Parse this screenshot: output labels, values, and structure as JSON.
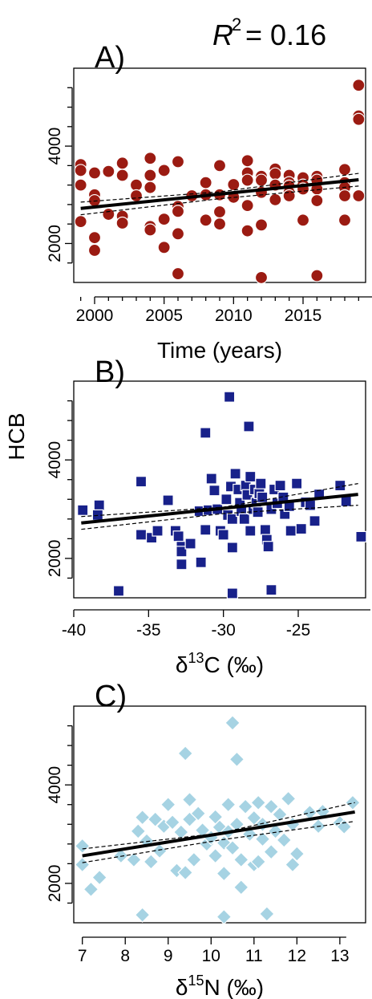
{
  "r2_text": "= 0.16",
  "shared_ylabel": "HCB",
  "chart_data": [
    {
      "type": "scatter",
      "panel": "A)",
      "xlabel": "Time (years)",
      "xlim": [
        1998.5,
        2019.5
      ],
      "ylim": [
        1200,
        5600
      ],
      "xticks": [
        2000,
        2005,
        2010,
        2015
      ],
      "yticks": [
        2000,
        4000
      ],
      "marker": "circle",
      "color": "#9b1b12",
      "points": [
        [
          1999,
          3620
        ],
        [
          1999,
          3500
        ],
        [
          1999,
          3200
        ],
        [
          1999,
          2450
        ],
        [
          2000,
          3450
        ],
        [
          2000,
          3000
        ],
        [
          2000,
          2880
        ],
        [
          2000,
          2120
        ],
        [
          2000,
          1860
        ],
        [
          2001,
          3480
        ],
        [
          2001,
          2600
        ],
        [
          2002,
          3650
        ],
        [
          2002,
          3400
        ],
        [
          2002,
          2560
        ],
        [
          2002,
          2420
        ],
        [
          2003,
          3200
        ],
        [
          2003,
          2980
        ],
        [
          2004,
          3750
        ],
        [
          2004,
          3400
        ],
        [
          2004,
          3150
        ],
        [
          2004,
          2350
        ],
        [
          2004,
          2280
        ],
        [
          2005,
          3500
        ],
        [
          2005,
          2500
        ],
        [
          2005,
          1920
        ],
        [
          2006,
          3680
        ],
        [
          2006,
          2760
        ],
        [
          2006,
          2660
        ],
        [
          2006,
          2200
        ],
        [
          2006,
          1380
        ],
        [
          2007,
          2980
        ],
        [
          2008,
          3250
        ],
        [
          2008,
          3000
        ],
        [
          2008,
          2480
        ],
        [
          2009,
          3600
        ],
        [
          2009,
          3000
        ],
        [
          2009,
          2650
        ],
        [
          2009,
          2400
        ],
        [
          2010,
          3210
        ],
        [
          2010,
          2950
        ],
        [
          2011,
          3700
        ],
        [
          2011,
          3450
        ],
        [
          2011,
          3300
        ],
        [
          2011,
          2780
        ],
        [
          2011,
          2260
        ],
        [
          2012,
          3380
        ],
        [
          2012,
          3300
        ],
        [
          2012,
          3050
        ],
        [
          2012,
          2380
        ],
        [
          2012,
          1300
        ],
        [
          2013,
          3530
        ],
        [
          2013,
          3430
        ],
        [
          2013,
          3200
        ],
        [
          2013,
          2900
        ],
        [
          2014,
          3400
        ],
        [
          2014,
          3250
        ],
        [
          2014,
          3180
        ],
        [
          2014,
          3050
        ],
        [
          2014,
          2980
        ],
        [
          2015,
          3350
        ],
        [
          2015,
          3200
        ],
        [
          2015,
          3120
        ],
        [
          2015,
          2480
        ],
        [
          2016,
          3380
        ],
        [
          2016,
          3300
        ],
        [
          2016,
          3120
        ],
        [
          2016,
          2880
        ],
        [
          2016,
          1340
        ],
        [
          2018,
          3520
        ],
        [
          2018,
          3250
        ],
        [
          2018,
          3150
        ],
        [
          2018,
          2980
        ],
        [
          2018,
          2480
        ],
        [
          2019,
          5250
        ],
        [
          2019,
          4620
        ],
        [
          2019,
          4550
        ],
        [
          2019,
          2980
        ]
      ],
      "fit": {
        "x": [
          1999,
          2019
        ],
        "y": [
          2720,
          3310
        ]
      },
      "ci_upper": {
        "x": [
          1999,
          2009,
          2019
        ],
        "y": [
          2850,
          3060,
          3440
        ]
      },
      "ci_lower": {
        "x": [
          1999,
          2009,
          2019
        ],
        "y": [
          2590,
          2920,
          3180
        ]
      }
    },
    {
      "type": "scatter",
      "panel": "B)",
      "xlabel": "δ13C (‰)",
      "xlabel_base": "δ",
      "xlabel_sup": "13",
      "xlabel_tail": "C (‰)",
      "xlim": [
        -40,
        -20.5
      ],
      "ylim": [
        1200,
        5600
      ],
      "xticks": [
        -40,
        -35,
        -30,
        -25
      ],
      "yticks": [
        2000,
        4000
      ],
      "marker": "square",
      "color": "#18218a",
      "points": [
        [
          -39.4,
          2980
        ],
        [
          -38.3,
          3080
        ],
        [
          -38.4,
          2880
        ],
        [
          -37.0,
          1340
        ],
        [
          -35.5,
          3560
        ],
        [
          -35.5,
          2480
        ],
        [
          -34.8,
          2420
        ],
        [
          -34.4,
          2560
        ],
        [
          -33.7,
          3180
        ],
        [
          -33.2,
          2560
        ],
        [
          -33.0,
          2450
        ],
        [
          -32.8,
          2240
        ],
        [
          -32.8,
          2140
        ],
        [
          -32.8,
          1880
        ],
        [
          -32.2,
          2300
        ],
        [
          -31.6,
          2960
        ],
        [
          -31.5,
          1920
        ],
        [
          -31.2,
          4550
        ],
        [
          -31.2,
          2580
        ],
        [
          -31.0,
          2980
        ],
        [
          -30.8,
          3620
        ],
        [
          -30.6,
          3380
        ],
        [
          -30.4,
          3000
        ],
        [
          -30.2,
          2560
        ],
        [
          -30.0,
          2480
        ],
        [
          -29.8,
          3200
        ],
        [
          -29.7,
          2880
        ],
        [
          -29.6,
          5280
        ],
        [
          -29.5,
          3460
        ],
        [
          -29.4,
          2800
        ],
        [
          -29.4,
          2220
        ],
        [
          -29.4,
          1290
        ],
        [
          -29.2,
          3720
        ],
        [
          -29.0,
          3400
        ],
        [
          -28.9,
          3130
        ],
        [
          -28.8,
          2960
        ],
        [
          -28.6,
          2800
        ],
        [
          -28.5,
          3480
        ],
        [
          -28.4,
          3290
        ],
        [
          -28.3,
          4680
        ],
        [
          -28.2,
          3660
        ],
        [
          -28.2,
          2560
        ],
        [
          -28.0,
          3000
        ],
        [
          -27.9,
          3400
        ],
        [
          -27.8,
          3130
        ],
        [
          -27.7,
          2940
        ],
        [
          -27.6,
          3320
        ],
        [
          -27.5,
          3520
        ],
        [
          -27.4,
          3240
        ],
        [
          -27.2,
          2580
        ],
        [
          -27.1,
          2380
        ],
        [
          -27.0,
          2240
        ],
        [
          -26.8,
          3000
        ],
        [
          -26.8,
          1360
        ],
        [
          -26.6,
          3400
        ],
        [
          -26.4,
          3120
        ],
        [
          -26.2,
          3480
        ],
        [
          -26.0,
          3240
        ],
        [
          -25.9,
          2900
        ],
        [
          -25.6,
          3060
        ],
        [
          -25.5,
          2560
        ],
        [
          -25.1,
          3520
        ],
        [
          -24.8,
          2600
        ],
        [
          -24.5,
          3140
        ],
        [
          -24.2,
          3080
        ],
        [
          -23.9,
          2760
        ],
        [
          -23.6,
          3300
        ],
        [
          -22.2,
          3480
        ],
        [
          -21.8,
          3160
        ],
        [
          -20.8,
          2440
        ]
      ],
      "fit": {
        "x": [
          -39.5,
          -21.0
        ],
        "y": [
          2720,
          3300
        ]
      },
      "ci_upper": {
        "x": [
          -39.5,
          -30,
          -21.0
        ],
        "y": [
          2850,
          3040,
          3520
        ]
      },
      "ci_lower": {
        "x": [
          -39.5,
          -30,
          -21.0
        ],
        "y": [
          2590,
          2910,
          3080
        ]
      }
    },
    {
      "type": "scatter",
      "panel": "C)",
      "xlabel": "δ15N (‰)",
      "xlabel_base": "δ",
      "xlabel_sup": "15",
      "xlabel_tail": "N (‰)",
      "xlim": [
        6.8,
        13.6
      ],
      "ylim": [
        1200,
        5600
      ],
      "xticks": [
        7,
        8,
        9,
        10,
        11,
        12,
        13
      ],
      "yticks": [
        2000,
        4000
      ],
      "marker": "diamond",
      "color": "#a6d3e3",
      "points": [
        [
          7.0,
          2760
        ],
        [
          7.0,
          2380
        ],
        [
          7.2,
          1880
        ],
        [
          7.4,
          2120
        ],
        [
          7.9,
          2560
        ],
        [
          8.2,
          2480
        ],
        [
          8.3,
          3060
        ],
        [
          8.4,
          1360
        ],
        [
          8.4,
          3340
        ],
        [
          8.5,
          2860
        ],
        [
          8.6,
          2440
        ],
        [
          8.7,
          3300
        ],
        [
          8.8,
          2660
        ],
        [
          8.9,
          3160
        ],
        [
          9.0,
          3600
        ],
        [
          9.1,
          3240
        ],
        [
          9.2,
          2260
        ],
        [
          9.3,
          3040
        ],
        [
          9.4,
          2220
        ],
        [
          9.4,
          4640
        ],
        [
          9.5,
          3700
        ],
        [
          9.5,
          3300
        ],
        [
          9.6,
          2480
        ],
        [
          9.7,
          3420
        ],
        [
          9.8,
          3080
        ],
        [
          9.9,
          2800
        ],
        [
          10.0,
          2930
        ],
        [
          10.1,
          3350
        ],
        [
          10.1,
          2560
        ],
        [
          10.2,
          3140
        ],
        [
          10.3,
          1320
        ],
        [
          10.3,
          2820
        ],
        [
          10.3,
          2200
        ],
        [
          10.4,
          3600
        ],
        [
          10.4,
          3050
        ],
        [
          10.5,
          2720
        ],
        [
          10.5,
          5260
        ],
        [
          10.6,
          4520
        ],
        [
          10.6,
          3200
        ],
        [
          10.7,
          2480
        ],
        [
          10.7,
          1920
        ],
        [
          10.8,
          3560
        ],
        [
          10.9,
          3000
        ],
        [
          11.0,
          2380
        ],
        [
          11.0,
          3330
        ],
        [
          11.1,
          3640
        ],
        [
          11.1,
          2440
        ],
        [
          11.2,
          3200
        ],
        [
          11.2,
          2900
        ],
        [
          11.3,
          1380
        ],
        [
          11.4,
          3560
        ],
        [
          11.4,
          2640
        ],
        [
          11.5,
          3060
        ],
        [
          11.6,
          3400
        ],
        [
          11.7,
          2880
        ],
        [
          11.8,
          3720
        ],
        [
          11.9,
          3200
        ],
        [
          11.9,
          2380
        ],
        [
          12.0,
          2600
        ],
        [
          12.3,
          3440
        ],
        [
          12.5,
          3160
        ],
        [
          12.6,
          3460
        ],
        [
          13.0,
          3230
        ],
        [
          13.1,
          3150
        ],
        [
          13.3,
          3640
        ]
      ],
      "fit": {
        "x": [
          7.0,
          13.35
        ],
        "y": [
          2560,
          3450
        ]
      },
      "ci_upper": {
        "x": [
          7.0,
          10.2,
          13.35
        ],
        "y": [
          2700,
          3020,
          3640
        ]
      },
      "ci_lower": {
        "x": [
          7.0,
          10.2,
          13.35
        ],
        "y": [
          2420,
          2880,
          3260
        ]
      }
    }
  ]
}
